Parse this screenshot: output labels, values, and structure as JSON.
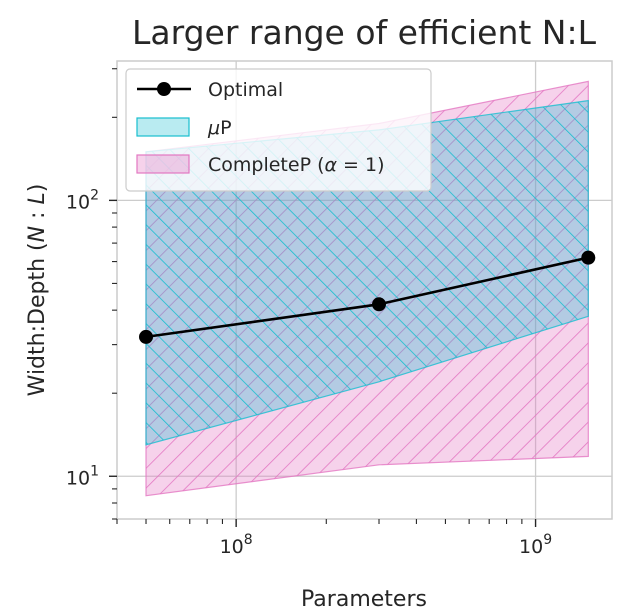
{
  "chart_data": {
    "type": "line",
    "title": "Larger range of efficient N:L",
    "xlabel": "Parameters",
    "ylabel": "Width:Depth (N : L)",
    "xscale": "log",
    "yscale": "log",
    "xlim": [
      40000000,
      1800000000
    ],
    "ylim": [
      7,
      320
    ],
    "grid": true,
    "x_major_ticks": [
      {
        "value": 100000000,
        "base": "10",
        "exp": "8"
      },
      {
        "value": 1000000000,
        "base": "10",
        "exp": "9"
      }
    ],
    "y_major_ticks": [
      {
        "value": 10,
        "base": "10",
        "exp": "1"
      },
      {
        "value": 100,
        "base": "10",
        "exp": "2"
      }
    ],
    "series": [
      {
        "name": "Optimal",
        "kind": "line",
        "color": "#000000",
        "x": [
          50000000,
          300000000,
          1500000000
        ],
        "y": [
          32,
          42,
          62
        ]
      }
    ],
    "bands": [
      {
        "name": "μP",
        "color": "#17becf",
        "x": [
          50000000,
          300000000,
          1500000000
        ],
        "lower": [
          13,
          22,
          38
        ],
        "upper": [
          150,
          180,
          230
        ]
      },
      {
        "name": "CompleteP (α = 1)",
        "color": "#e377c2",
        "x": [
          50000000,
          300000000,
          1500000000
        ],
        "lower": [
          8.5,
          11,
          11.8
        ],
        "upper": [
          150,
          190,
          270
        ]
      }
    ],
    "legend": {
      "placement": "top-left",
      "entries": [
        {
          "label": "Optimal",
          "main": "Optimal",
          "math": "",
          "tail": ""
        },
        {
          "label": "μP",
          "main": "",
          "math": "μ",
          "tail": "P"
        },
        {
          "label": "CompleteP (α = 1)",
          "main": "CompleteP (",
          "math": "α",
          "tail": " = 1)"
        }
      ]
    }
  }
}
